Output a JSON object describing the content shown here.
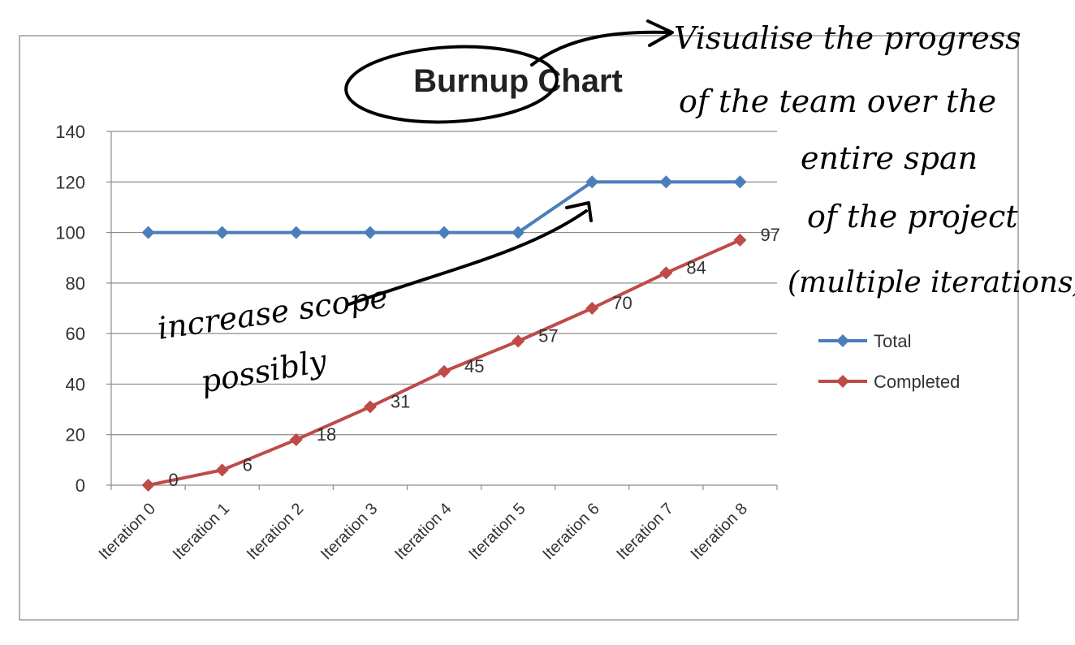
{
  "chart_data": {
    "type": "line",
    "title": "Burnup Chart",
    "xlabel": "",
    "ylabel": "",
    "categories": [
      "Iteration 0",
      "Iteration 1",
      "Iteration 2",
      "Iteration 3",
      "Iteration 4",
      "Iteration 5",
      "Iteration 6",
      "Iteration 7",
      "Iteration 8"
    ],
    "ylim": [
      0,
      140
    ],
    "yticks": [
      0,
      20,
      40,
      60,
      80,
      100,
      120,
      140
    ],
    "grid": true,
    "legend_position": "right",
    "series": [
      {
        "name": "Total",
        "color": "#4a7ebb",
        "values": [
          100,
          100,
          100,
          100,
          100,
          100,
          120,
          120,
          120
        ],
        "data_labels": false
      },
      {
        "name": "Completed",
        "color": "#be4b48",
        "values": [
          0,
          6,
          18,
          31,
          45,
          57,
          70,
          84,
          97
        ],
        "data_labels": true
      }
    ]
  },
  "annotations": {
    "note_lines": [
      "Visualise the progress",
      "of the team over the",
      "entire span",
      "of the project",
      "(multiple iterations)"
    ],
    "scope_lines": [
      "increase scope",
      "possibly"
    ]
  }
}
